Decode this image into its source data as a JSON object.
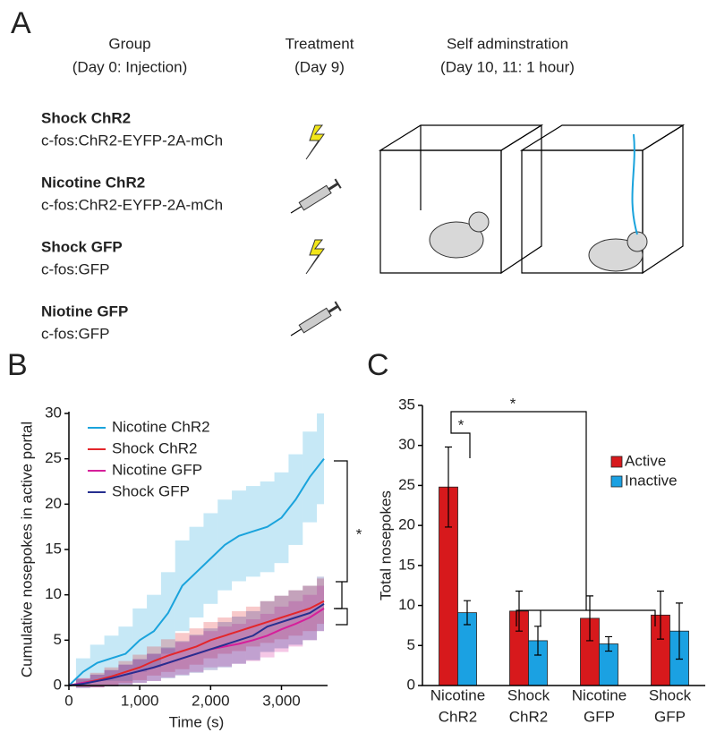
{
  "panel_labels": [
    "A",
    "B",
    "C"
  ],
  "panel_a": {
    "headers": [
      {
        "title": "Group",
        "subtitle": "(Day 0: Injection)"
      },
      {
        "title": "Treatment",
        "subtitle": "(Day 9)"
      },
      {
        "title": "Self adminstration",
        "subtitle": "(Day 10, 11: 1 hour)"
      }
    ],
    "groups": [
      {
        "name": "Shock ChR2",
        "construct": "c-fos:ChR2-EYFP-2A-mCh"
      },
      {
        "name": "Nicotine ChR2",
        "construct": "c-fos:ChR2-EYFP-2A-mCh"
      },
      {
        "name": "Shock GFP",
        "construct": "c-fos:GFP"
      },
      {
        "name": "Niotine GFP",
        "construct": "c-fos:GFP"
      }
    ]
  },
  "chart_data": [
    {
      "type": "line",
      "xlabel": "Time (s)",
      "ylabel": "Cumulative nosepokes in active portal",
      "x": [
        0,
        200,
        400,
        600,
        800,
        1000,
        1200,
        1400,
        1600,
        1800,
        2000,
        2200,
        2400,
        2600,
        2800,
        3000,
        3200,
        3400,
        3600
      ],
      "xlim": [
        0,
        3600
      ],
      "xticks": [
        0,
        {
          "value": 1000,
          "label": "1,000"
        },
        {
          "value": 2000,
          "label": "2,000"
        },
        {
          "value": 3000,
          "label": "3,000"
        }
      ],
      "ylim": [
        0,
        30
      ],
      "yticks": [
        0,
        5,
        10,
        15,
        20,
        25,
        30
      ],
      "legend": "upper left",
      "annotations": [
        "*"
      ],
      "series": [
        {
          "name": "Nicotine ChR2",
          "color": "#1aa3dc",
          "values": [
            0,
            1.5,
            2.5,
            3,
            3.5,
            5,
            6,
            8,
            11,
            12.5,
            14,
            15.5,
            16.5,
            17,
            17.5,
            18.5,
            20.5,
            23,
            25
          ],
          "errors": [
            0,
            1.5,
            2,
            2.5,
            3,
            3.5,
            4,
            4.5,
            5,
            5,
            5,
            5,
            5,
            5,
            5,
            5,
            5,
            5,
            5
          ]
        },
        {
          "name": "Shock ChR2",
          "color": "#e3262b",
          "values": [
            0,
            0.3,
            0.6,
            1,
            1.5,
            2,
            2.7,
            3.3,
            3.8,
            4.3,
            5,
            5.5,
            6,
            6.5,
            7,
            7.5,
            8,
            8.5,
            9.3
          ],
          "errors": [
            0,
            0.5,
            0.8,
            1,
            1.2,
            1.4,
            1.6,
            1.8,
            2,
            2,
            2,
            2,
            2.2,
            2.2,
            2.3,
            2.4,
            2.5,
            2.5,
            2.5
          ]
        },
        {
          "name": "Nicotine GFP",
          "color": "#d61f9a",
          "values": [
            0,
            0.3,
            0.5,
            0.8,
            1.2,
            1.6,
            2,
            2.5,
            3,
            3.5,
            4,
            4.3,
            4.6,
            5,
            5.5,
            6.2,
            6.8,
            7.5,
            8.5
          ],
          "errors": [
            0,
            0.5,
            0.7,
            0.9,
            1.1,
            1.3,
            1.5,
            1.6,
            1.8,
            2,
            2,
            2.2,
            2.2,
            2.3,
            2.4,
            2.5,
            2.5,
            2.5,
            2.5
          ]
        },
        {
          "name": "Shock GFP",
          "color": "#262f8f",
          "values": [
            0,
            0.2,
            0.5,
            0.8,
            1.2,
            1.6,
            2,
            2.5,
            3,
            3.5,
            4,
            4.5,
            5,
            5.5,
            6.5,
            7,
            7.5,
            8,
            9
          ],
          "errors": [
            0,
            0.5,
            0.7,
            0.9,
            1.1,
            1.3,
            1.5,
            1.7,
            1.9,
            2.1,
            2.3,
            2.5,
            2.6,
            2.7,
            2.8,
            2.9,
            3,
            3,
            3
          ]
        }
      ]
    },
    {
      "type": "bar",
      "ylabel": "Total nosepokes",
      "categories": [
        [
          "Nicotine",
          "ChR2"
        ],
        [
          "Shock",
          "ChR2"
        ],
        [
          "Nicotine",
          "GFP"
        ],
        [
          "Shock",
          "GFP"
        ]
      ],
      "ylim": [
        0,
        35
      ],
      "yticks": [
        0,
        5,
        10,
        15,
        20,
        25,
        30,
        35
      ],
      "legend": "right",
      "annotations": [
        "*",
        "*"
      ],
      "series": [
        {
          "name": "Active",
          "color": "#d7191c",
          "values": [
            24.8,
            9.3,
            8.4,
            8.8
          ],
          "errors": [
            5,
            2.5,
            2.8,
            3
          ]
        },
        {
          "name": "Inactive",
          "color": "#1ba1e2",
          "values": [
            9.1,
            5.6,
            5.2,
            6.8
          ],
          "errors": [
            1.5,
            1.8,
            0.9,
            3.5
          ]
        }
      ]
    }
  ]
}
